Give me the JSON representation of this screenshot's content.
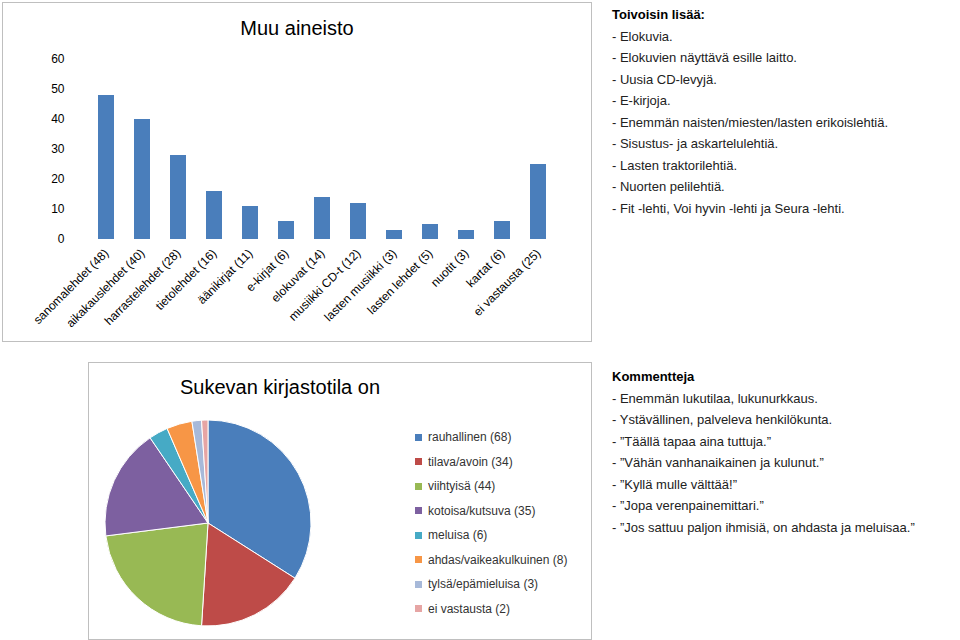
{
  "chart_data": [
    {
      "type": "bar",
      "title": "Muu aineisto",
      "categories": [
        "sanomalehdet (48)",
        "aikakauslehdet (40)",
        "harrastelehdet (28)",
        "tietolehdet (16)",
        "äänikirjat (11)",
        "e-kirjat (6)",
        "elokuvat (14)",
        "musiikki CD-t (12)",
        "lasten musiikki (3)",
        "lasten lehdet (5)",
        "nuotit (3)",
        "kartat (6)",
        "ei vastausta (25)"
      ],
      "values": [
        48,
        40,
        28,
        16,
        11,
        6,
        14,
        12,
        3,
        5,
        3,
        6,
        25
      ],
      "color": "#4a7ebb",
      "ylim": [
        0,
        60
      ],
      "yticks": [
        0,
        10,
        20,
        30,
        40,
        50,
        60
      ],
      "grid": false
    },
    {
      "type": "pie",
      "title": "Sukevan kirjastotila on",
      "categories": [
        "rauhallinen (68)",
        "tilava/avoin (34)",
        "viihtyisä (44)",
        "kotoisa/kutsuva (35)",
        "meluisa (6)",
        "ahdas/vaikeakulkuinen (8)",
        "tylsä/epämieluisa (3)",
        "ei vastausta (2)"
      ],
      "values": [
        68,
        34,
        44,
        35,
        6,
        8,
        3,
        2
      ],
      "colors": [
        "#4a7ebb",
        "#be4b48",
        "#98b954",
        "#7d60a0",
        "#46aac5",
        "#f79646",
        "#a7b9d9",
        "#e6a5a4"
      ],
      "legend": "right"
    }
  ],
  "panels": [
    {
      "title": "Toivoisin lisää:",
      "items": [
        "- Elokuvia.",
        "- Elokuvien näyttävä esille laitto.",
        "- Uusia CD-levyjä.",
        "- E-kirjoja.",
        "- Enemmän naisten/miesten/lasten erikoislehtiä.",
        "- Sisustus- ja askartelulehtiä.",
        "- Lasten traktorilehtiä.",
        "- Nuorten pelilehtiä.",
        "- Fit -lehti, Voi hyvin -lehti ja Seura -lehti."
      ]
    },
    {
      "title": "Kommentteja",
      "items": [
        "- Enemmän lukutilaa, lukunurkkaus.",
        "- Ystävällinen, palveleva henkilökunta.",
        "- ”Täällä tapaa aina tuttuja.”",
        "- ”Vähän vanhanaikainen ja kulunut.”",
        "- ”Kyllä mulle välttää!”",
        "- ”Jopa verenpainemittari.”",
        "- ”Jos sattuu paljon ihmisiä, on ahdasta ja meluisaa.”"
      ]
    }
  ]
}
